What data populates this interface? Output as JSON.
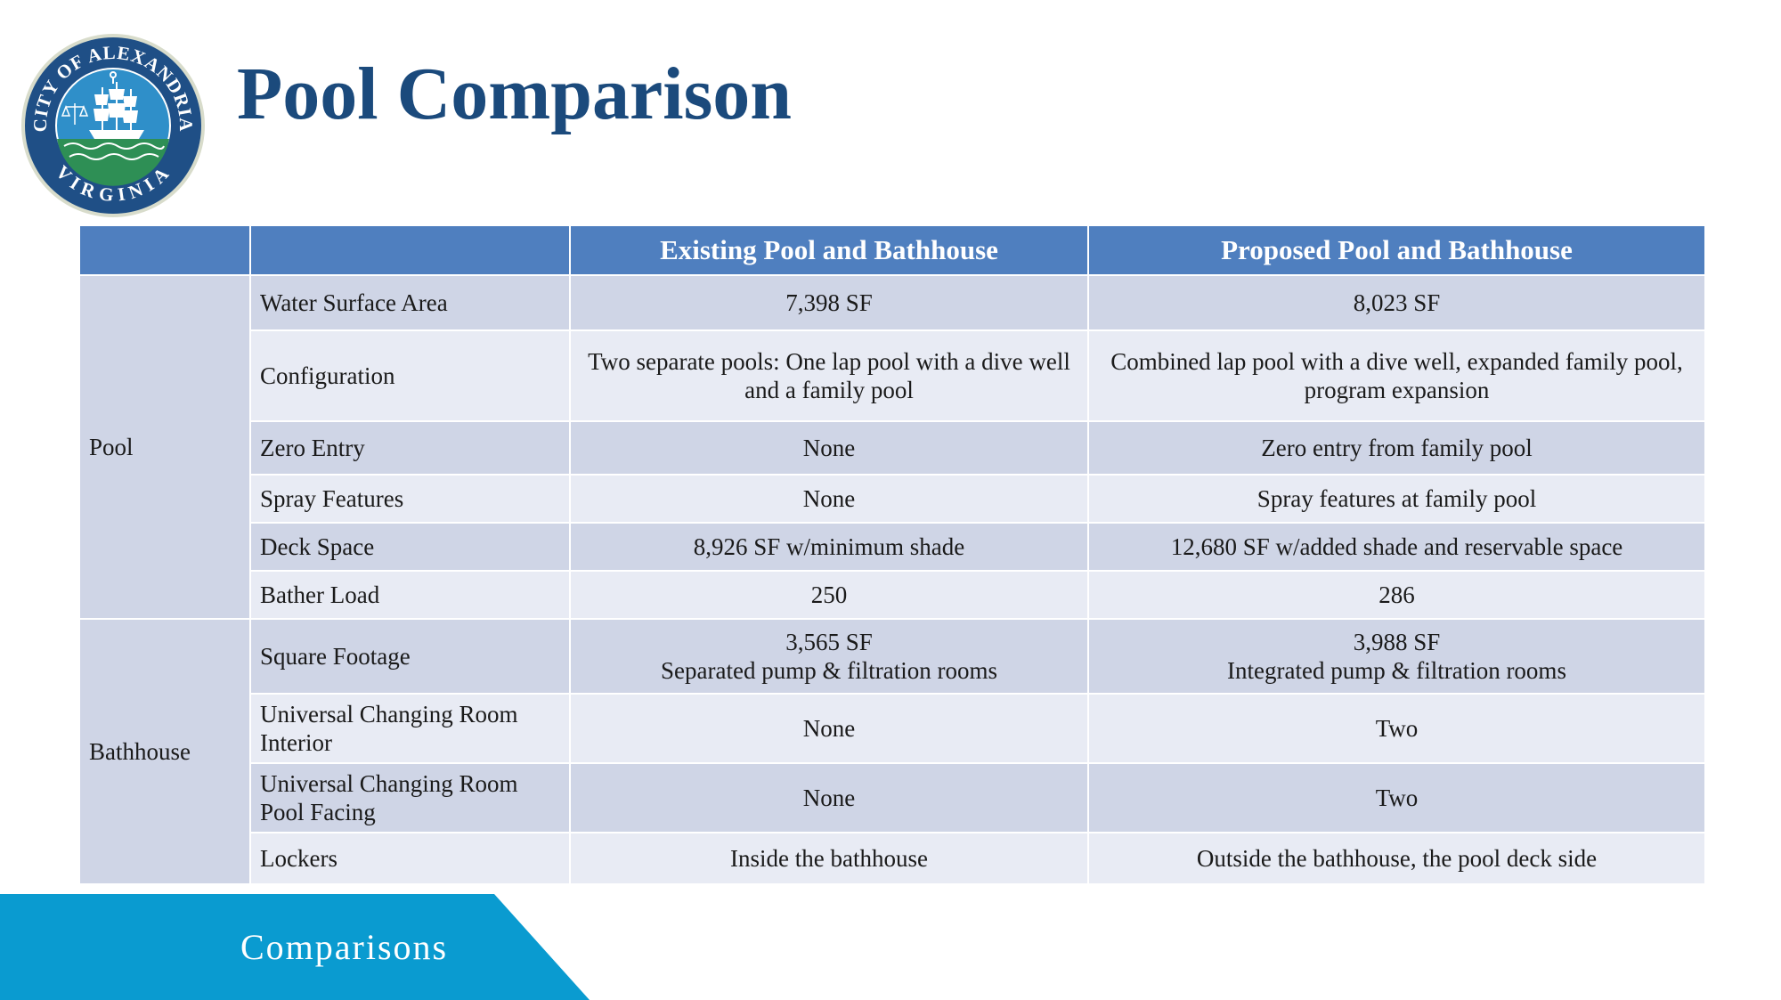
{
  "logo": {
    "top_text": "CITY OF ALEXANDRIA",
    "bottom_text": "VIRGINIA",
    "icon": "city-seal-ship-icon"
  },
  "title": "Pool Comparison",
  "table": {
    "headers": [
      "",
      "",
      "Existing Pool and Bathhouse",
      "Proposed Pool and Bathhouse"
    ],
    "groups": [
      {
        "category": "Pool",
        "rows": [
          {
            "label": "Water Surface Area",
            "existing": "7,398 SF",
            "proposed": "8,023 SF"
          },
          {
            "label": "Configuration",
            "existing": "Two separate pools: One lap pool with a dive well and a family pool",
            "proposed": "Combined lap pool with a dive well, expanded family pool, program expansion"
          },
          {
            "label": "Zero Entry",
            "existing": "None",
            "proposed": "Zero entry from family pool"
          },
          {
            "label": "Spray Features",
            "existing": "None",
            "proposed": "Spray features at family pool"
          },
          {
            "label": "Deck Space",
            "existing": "8,926 SF w/minimum shade",
            "proposed": "12,680 SF w/added shade and reservable space"
          },
          {
            "label": "Bather Load",
            "existing": "250",
            "proposed": "286"
          }
        ]
      },
      {
        "category": "Bathhouse",
        "rows": [
          {
            "label": "Square Footage",
            "existing": "3,565 SF",
            "existing_line2": "Separated pump & filtration rooms",
            "proposed": "3,988 SF",
            "proposed_line2": "Integrated pump & filtration rooms"
          },
          {
            "label": "Universal Changing Room Interior",
            "existing": "None",
            "proposed": "Two"
          },
          {
            "label": "Universal Changing Room Pool Facing",
            "existing": "None",
            "proposed": "Two"
          },
          {
            "label": "Lockers",
            "existing": "Inside the bathhouse",
            "proposed": "Outside the bathhouse, the pool deck side"
          }
        ]
      }
    ]
  },
  "footer": {
    "label": "Comparisons"
  },
  "colors": {
    "title": "#1b4a7c",
    "header_bg": "#4f7fbf",
    "row_dark": "#cfd5e6",
    "row_light": "#e8ebf4",
    "footer_band": "#0a9bd0"
  }
}
